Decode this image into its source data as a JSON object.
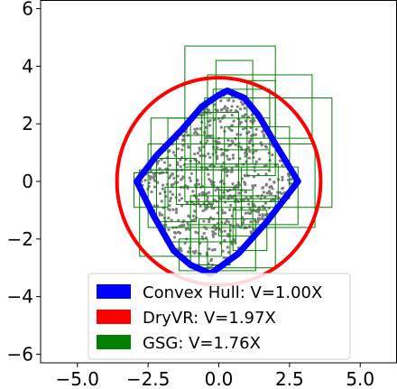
{
  "chart_data": {
    "type": "scatter",
    "title": "",
    "xlabel": "",
    "ylabel": "",
    "xlim": [
      -6.3,
      6.3
    ],
    "ylim": [
      -6.3,
      6.3
    ],
    "x_ticks": [
      -5.0,
      -2.5,
      0.0,
      2.5,
      5.0
    ],
    "x_tick_labels": [
      "−5.0",
      "−2.5",
      "0.0",
      "2.5",
      "5.0"
    ],
    "y_ticks": [
      -6,
      -4,
      -2,
      0,
      2,
      4,
      6
    ],
    "y_tick_labels": [
      "−6",
      "−4",
      "−2",
      "0",
      "2",
      "4",
      "6"
    ],
    "grid": false,
    "legend_position": "lower center",
    "colors": {
      "convex_hull": "#0000ff",
      "dryvr": "#ff0000",
      "gsg": "#008000",
      "points": "#808080"
    },
    "series": [
      {
        "name": "Convex Hull: V=1.00X",
        "kind": "polygon",
        "vertices": [
          [
            -2.9,
            0.0
          ],
          [
            -2.2,
            0.9
          ],
          [
            -1.3,
            1.8
          ],
          [
            -0.6,
            2.6
          ],
          [
            0.0,
            3.0
          ],
          [
            0.3,
            3.15
          ],
          [
            0.9,
            2.9
          ],
          [
            1.4,
            2.3
          ],
          [
            2.0,
            1.3
          ],
          [
            2.8,
            0.0
          ],
          [
            1.7,
            -1.4
          ],
          [
            0.7,
            -2.5
          ],
          [
            0.0,
            -3.0
          ],
          [
            -0.3,
            -3.2
          ],
          [
            -1.0,
            -2.9
          ],
          [
            -1.6,
            -2.4
          ],
          [
            -2.3,
            -1.2
          ]
        ]
      },
      {
        "name": "DryVR: V=1.97X",
        "kind": "circle",
        "center": [
          0.0,
          0.0
        ],
        "radius": 3.6
      },
      {
        "name": "GSG: V=1.76X",
        "kind": "rectangles",
        "boxes": [
          [
            -1.2,
            4.7,
            2.0,
            0.5
          ],
          [
            -0.1,
            4.2,
            1.2,
            0.6
          ],
          [
            -0.4,
            3.7,
            3.3,
            1.5
          ],
          [
            -1.8,
            2.2,
            1.8,
            0.4
          ],
          [
            -2.5,
            1.3,
            3.4,
            -1.6
          ],
          [
            -1.2,
            0.6,
            2.1,
            -0.7
          ],
          [
            -0.5,
            2.9,
            4.0,
            -0.9
          ],
          [
            -2.8,
            0.4,
            0.1,
            -2.6
          ],
          [
            -1.0,
            -0.5,
            2.0,
            -3.0
          ],
          [
            -0.7,
            -1.3,
            1.3,
            -3.1
          ],
          [
            -1.9,
            -0.2,
            0.6,
            -2.1
          ],
          [
            0.2,
            1.9,
            2.5,
            -0.6
          ],
          [
            -1.5,
            1.6,
            -0.2,
            -0.8
          ],
          [
            0.5,
            -1.0,
            1.7,
            -2.4
          ],
          [
            -2.2,
            0.8,
            -0.8,
            -1.4
          ],
          [
            -0.2,
            3.2,
            1.8,
            1.1
          ],
          [
            -3.0,
            0.3,
            -1.8,
            -0.9
          ],
          [
            0.8,
            0.5,
            2.8,
            -1.5
          ],
          [
            -1.0,
            -1.5,
            0.4,
            -2.9
          ],
          [
            -0.6,
            2.4,
            0.7,
            -0.2
          ],
          [
            1.0,
            3.5,
            2.0,
            0.2
          ],
          [
            -2.4,
            2.2,
            -1.0,
            0.4
          ],
          [
            0.0,
            -0.3,
            1.2,
            -1.9
          ],
          [
            -1.4,
            -2.0,
            -0.4,
            -3.1
          ]
        ]
      }
    ],
    "point_cloud": {
      "name": "samples",
      "count": 700
    }
  }
}
